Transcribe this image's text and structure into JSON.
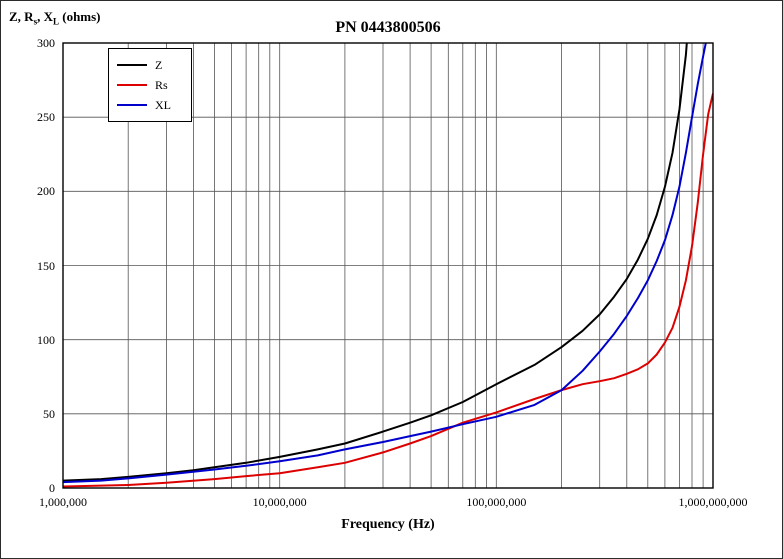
{
  "page": {
    "title": "PN 0443800506"
  },
  "axis": {
    "ylabel_parts": {
      "p1": "Z, R",
      "sub1": "s",
      "p2": ", X",
      "sub2": "L",
      "p3": " (ohms)"
    }
  },
  "chart_data": {
    "type": "line",
    "title": "PN 0443800506",
    "xlabel": "Frequency (Hz)",
    "ylabel": "Z, Rs, XL (ohms)",
    "x_scale": "log",
    "xlim": [
      1000000,
      1000000000
    ],
    "ylim": [
      0,
      300
    ],
    "y_ticks": [
      0,
      50,
      100,
      150,
      200,
      250,
      300
    ],
    "y_tick_labels": [
      "0",
      "50",
      "100",
      "150",
      "200",
      "250",
      "300"
    ],
    "x_tick_values": [
      1000000,
      10000000,
      100000000,
      1000000000
    ],
    "x_tick_labels": [
      "1,000,000",
      "10,000,000",
      "100,000,000",
      "1,000,000,000"
    ],
    "grid": "vertical log-minor gridlines each decade; horizontal gridlines every 50 ohms",
    "legend_position": "top-left",
    "series": [
      {
        "name": "Z",
        "color": "#000000",
        "points": [
          [
            1000000,
            5
          ],
          [
            1500000,
            6
          ],
          [
            2000000,
            7.5
          ],
          [
            3000000,
            10
          ],
          [
            4000000,
            12
          ],
          [
            5000000,
            14
          ],
          [
            7000000,
            17
          ],
          [
            10000000,
            21
          ],
          [
            15000000,
            26
          ],
          [
            20000000,
            30
          ],
          [
            30000000,
            38
          ],
          [
            40000000,
            44
          ],
          [
            50000000,
            49
          ],
          [
            70000000,
            58
          ],
          [
            100000000,
            70
          ],
          [
            150000000,
            83
          ],
          [
            200000000,
            95
          ],
          [
            250000000,
            106
          ],
          [
            300000000,
            117
          ],
          [
            350000000,
            129
          ],
          [
            400000000,
            141
          ],
          [
            450000000,
            154
          ],
          [
            500000000,
            168
          ],
          [
            550000000,
            184
          ],
          [
            600000000,
            203
          ],
          [
            650000000,
            226
          ],
          [
            700000000,
            255
          ],
          [
            750000000,
            292
          ],
          [
            780000000,
            325
          ]
        ]
      },
      {
        "name": "Rs",
        "color": "#dd0000",
        "points": [
          [
            1000000,
            1
          ],
          [
            2000000,
            2
          ],
          [
            3000000,
            3.5
          ],
          [
            5000000,
            6
          ],
          [
            7000000,
            8
          ],
          [
            10000000,
            10
          ],
          [
            15000000,
            14
          ],
          [
            20000000,
            17
          ],
          [
            30000000,
            24
          ],
          [
            40000000,
            30
          ],
          [
            50000000,
            35
          ],
          [
            70000000,
            44
          ],
          [
            100000000,
            51
          ],
          [
            150000000,
            60
          ],
          [
            200000000,
            66
          ],
          [
            250000000,
            70
          ],
          [
            300000000,
            72
          ],
          [
            350000000,
            74
          ],
          [
            400000000,
            77
          ],
          [
            450000000,
            80
          ],
          [
            500000000,
            84
          ],
          [
            550000000,
            90
          ],
          [
            600000000,
            98
          ],
          [
            650000000,
            108
          ],
          [
            700000000,
            122
          ],
          [
            750000000,
            140
          ],
          [
            800000000,
            163
          ],
          [
            850000000,
            192
          ],
          [
            900000000,
            225
          ],
          [
            950000000,
            252
          ],
          [
            1000000000,
            266
          ]
        ]
      },
      {
        "name": "XL",
        "color": "#0000cc",
        "points": [
          [
            1000000,
            4
          ],
          [
            1500000,
            5
          ],
          [
            2000000,
            6.5
          ],
          [
            3000000,
            9
          ],
          [
            4000000,
            11
          ],
          [
            5000000,
            12.5
          ],
          [
            7000000,
            15
          ],
          [
            10000000,
            18
          ],
          [
            15000000,
            22
          ],
          [
            20000000,
            26
          ],
          [
            30000000,
            31
          ],
          [
            40000000,
            35
          ],
          [
            50000000,
            38
          ],
          [
            70000000,
            43
          ],
          [
            100000000,
            48
          ],
          [
            150000000,
            56
          ],
          [
            200000000,
            66
          ],
          [
            250000000,
            79
          ],
          [
            300000000,
            92
          ],
          [
            350000000,
            104
          ],
          [
            400000000,
            116
          ],
          [
            450000000,
            128
          ],
          [
            500000000,
            140
          ],
          [
            550000000,
            153
          ],
          [
            600000000,
            167
          ],
          [
            650000000,
            184
          ],
          [
            700000000,
            203
          ],
          [
            750000000,
            226
          ],
          [
            800000000,
            250
          ],
          [
            850000000,
            272
          ],
          [
            900000000,
            291
          ],
          [
            950000000,
            308
          ]
        ]
      }
    ]
  }
}
